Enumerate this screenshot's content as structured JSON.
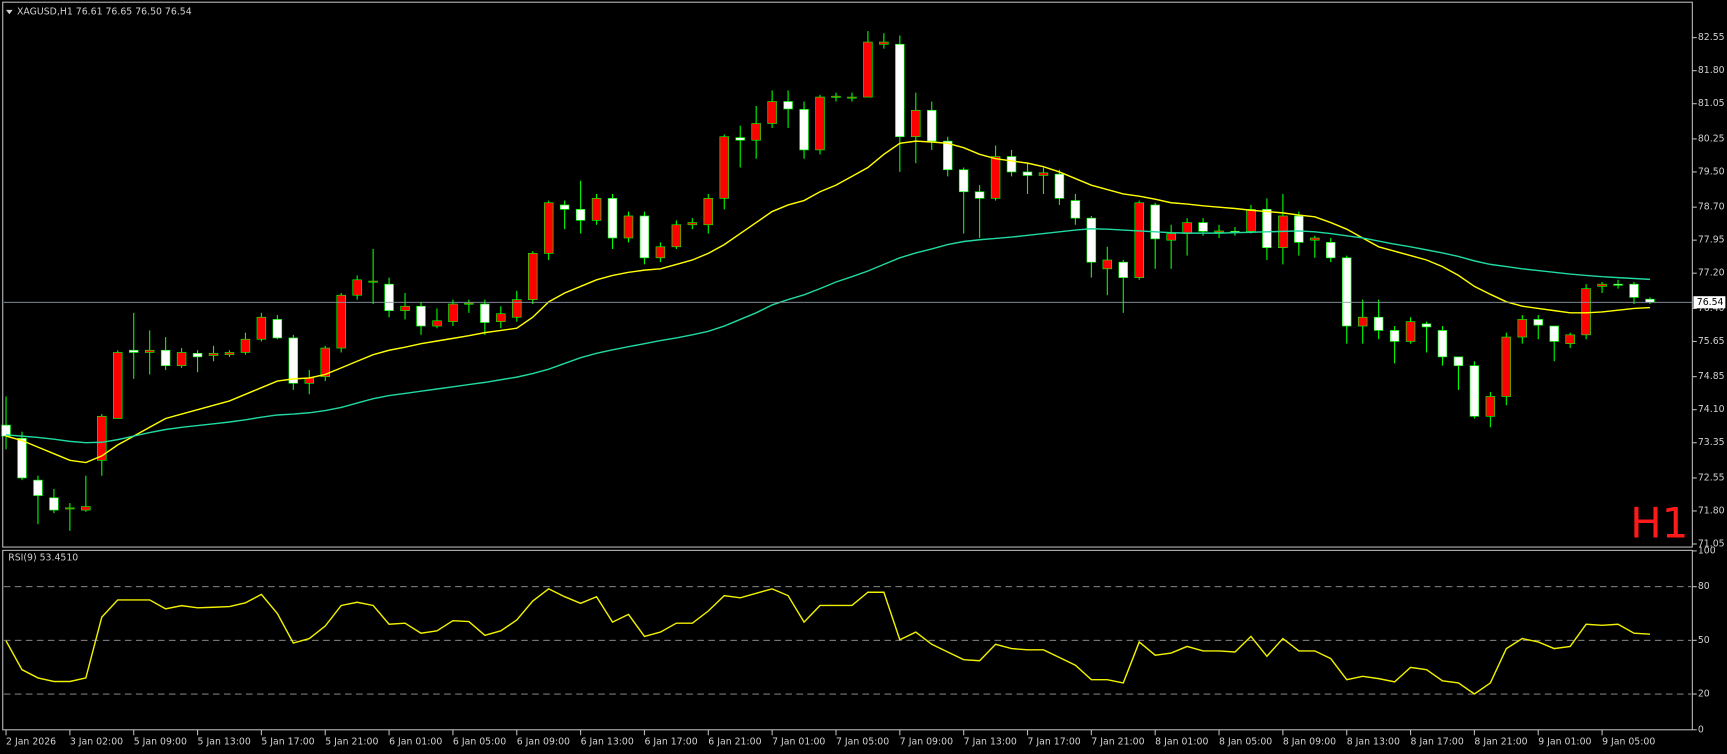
{
  "chart_data": [
    {
      "type": "candlestick",
      "title": "XAGUSD,H1  76.61 76.65 76.50 76.54",
      "annotation": "H1",
      "categories": [
        "2 Jan 2026",
        null,
        null,
        null,
        "3 Jan 02:00",
        null,
        null,
        null,
        "5 Jan 09:00",
        null,
        null,
        null,
        "5 Jan 13:00",
        null,
        null,
        null,
        "5 Jan 17:00",
        null,
        null,
        null,
        "5 Jan 21:00",
        null,
        null,
        null,
        "6 Jan 01:00",
        null,
        null,
        null,
        "6 Jan 05:00",
        null,
        null,
        null,
        "6 Jan 09:00",
        null,
        null,
        null,
        "6 Jan 13:00",
        null,
        null,
        null,
        "6 Jan 17:00",
        null,
        null,
        null,
        "6 Jan 21:00",
        null,
        null,
        null,
        "7 Jan 01:00",
        null,
        null,
        null,
        "7 Jan 05:00",
        null,
        null,
        null,
        "7 Jan 09:00",
        null,
        null,
        null,
        "7 Jan 13:00",
        null,
        null,
        null,
        "7 Jan 17:00",
        null,
        null,
        null,
        "7 Jan 21:00",
        null,
        null,
        null,
        "8 Jan 01:00",
        null,
        null,
        null,
        "8 Jan 05:00",
        null,
        null,
        null,
        "8 Jan 09:00",
        null,
        null,
        null,
        "8 Jan 13:00",
        null,
        null,
        null,
        "8 Jan 17:00",
        null,
        null,
        null,
        "8 Jan 21:00",
        null,
        null,
        null,
        "9 Jan 01:00",
        null,
        null,
        null,
        "9 Jan 05:00",
        null,
        null,
        null
      ],
      "ohlc": {
        "open": [
          73.75,
          73.45,
          72.5,
          72.1,
          71.85,
          71.82,
          72.95,
          73.9,
          75.45,
          75.4,
          75.45,
          75.1,
          75.38,
          75.33,
          75.35,
          75.4,
          75.7,
          76.15,
          75.73,
          74.7,
          74.85,
          75.5,
          76.7,
          77.0,
          76.95,
          76.35,
          76.45,
          76.0,
          76.1,
          76.5,
          76.5,
          76.1,
          76.2,
          76.6,
          77.65,
          78.75,
          78.65,
          78.4,
          78.9,
          78.0,
          78.5,
          77.55,
          77.8,
          78.3,
          78.3,
          78.9,
          80.28,
          80.22,
          80.6,
          81.1,
          80.92,
          80.0,
          81.2,
          81.18,
          81.2,
          82.4,
          82.4,
          80.3,
          80.9,
          80.2,
          79.55,
          79.05,
          78.9,
          79.85,
          79.5,
          79.42,
          79.45,
          78.85,
          78.45,
          77.3,
          77.45,
          77.1,
          78.75,
          77.95,
          78.1,
          78.35,
          78.13,
          78.15,
          78.15,
          78.65,
          77.78,
          78.5,
          77.95,
          77.9,
          77.55,
          76.0,
          76.2,
          75.9,
          75.65,
          76.05,
          75.9,
          75.3,
          75.1,
          73.95,
          74.4,
          75.75,
          76.15,
          76.0,
          75.6,
          75.8,
          76.9,
          76.95,
          76.95,
          76.61
        ],
        "high": [
          74.4,
          73.6,
          72.6,
          72.3,
          71.98,
          72.6,
          74.0,
          75.45,
          76.3,
          75.9,
          75.75,
          75.5,
          75.45,
          75.55,
          75.45,
          75.85,
          76.3,
          76.25,
          75.8,
          75.0,
          75.55,
          76.75,
          77.15,
          77.75,
          77.1,
          76.75,
          76.55,
          76.4,
          76.6,
          76.6,
          76.6,
          76.45,
          76.8,
          77.7,
          78.85,
          78.85,
          79.3,
          79.0,
          79.0,
          78.6,
          78.6,
          77.9,
          78.4,
          78.45,
          79.0,
          80.35,
          80.55,
          81.0,
          81.35,
          81.35,
          81.1,
          81.25,
          81.3,
          81.3,
          82.7,
          82.65,
          82.6,
          81.3,
          81.1,
          80.3,
          79.6,
          79.2,
          80.1,
          80.0,
          79.7,
          79.6,
          79.55,
          79.0,
          78.5,
          77.8,
          77.5,
          78.85,
          78.8,
          78.3,
          78.45,
          78.45,
          78.3,
          78.25,
          78.75,
          78.9,
          79.0,
          78.6,
          78.05,
          78.0,
          77.6,
          76.6,
          76.6,
          76.0,
          76.2,
          76.1,
          76.0,
          75.3,
          75.2,
          74.5,
          75.85,
          76.25,
          76.25,
          76.0,
          75.85,
          76.95,
          77.0,
          77.05,
          77.0,
          76.65
        ],
        "low": [
          73.2,
          72.5,
          71.5,
          71.75,
          71.35,
          71.78,
          72.6,
          73.9,
          74.8,
          74.9,
          75.0,
          75.05,
          74.95,
          75.2,
          75.3,
          75.35,
          75.65,
          75.7,
          74.55,
          74.45,
          74.75,
          75.4,
          76.6,
          76.5,
          76.2,
          76.15,
          75.8,
          75.95,
          76.0,
          76.3,
          75.8,
          75.95,
          76.1,
          76.5,
          77.5,
          78.2,
          78.1,
          78.3,
          77.75,
          77.9,
          77.4,
          77.45,
          77.75,
          78.2,
          78.1,
          78.65,
          79.6,
          79.8,
          80.5,
          80.5,
          79.8,
          79.9,
          81.1,
          81.1,
          81.2,
          82.3,
          79.5,
          79.7,
          80.0,
          79.4,
          78.1,
          78.0,
          78.85,
          79.4,
          79.0,
          79.0,
          78.75,
          78.3,
          77.1,
          76.7,
          76.3,
          77.05,
          77.3,
          77.3,
          77.6,
          78.05,
          78.0,
          78.05,
          78.1,
          77.5,
          77.4,
          77.6,
          77.55,
          77.45,
          75.6,
          75.6,
          75.7,
          75.15,
          75.6,
          75.4,
          75.1,
          74.55,
          73.9,
          73.7,
          74.2,
          75.6,
          75.7,
          75.2,
          75.5,
          75.7,
          76.75,
          76.85,
          76.5,
          76.5
        ],
        "close": [
          73.5,
          72.55,
          72.15,
          71.82,
          71.87,
          71.9,
          73.95,
          75.4,
          75.4,
          75.45,
          75.1,
          75.4,
          75.3,
          75.38,
          75.4,
          75.7,
          76.2,
          75.73,
          74.7,
          74.82,
          75.5,
          76.7,
          77.05,
          77.02,
          76.35,
          76.45,
          76.0,
          76.12,
          76.5,
          76.52,
          76.08,
          76.28,
          76.6,
          77.65,
          78.8,
          78.65,
          78.4,
          78.9,
          78.0,
          78.5,
          77.55,
          77.8,
          78.3,
          78.35,
          78.9,
          80.3,
          80.22,
          80.6,
          81.1,
          80.93,
          80.0,
          81.2,
          81.22,
          81.2,
          82.45,
          82.45,
          80.3,
          80.9,
          80.2,
          79.55,
          79.05,
          78.9,
          79.85,
          79.5,
          79.42,
          79.48,
          78.9,
          78.45,
          77.45,
          77.5,
          77.1,
          78.8,
          77.98,
          78.1,
          78.35,
          78.15,
          78.16,
          78.14,
          78.65,
          77.78,
          78.5,
          77.9,
          78.0,
          77.55,
          76.0,
          76.2,
          75.9,
          75.65,
          76.1,
          75.98,
          75.3,
          75.1,
          73.95,
          74.4,
          75.75,
          76.15,
          76.02,
          75.65,
          75.8,
          76.85,
          76.95,
          76.93,
          76.65,
          76.54
        ]
      },
      "up_color": "#ff0000",
      "down_color": "#ffffff",
      "wick_color": "#00ff00",
      "series": [
        {
          "color": "#ffff00",
          "values": [
            73.5,
            73.4,
            73.25,
            73.1,
            72.95,
            72.9,
            73.05,
            73.3,
            73.5,
            73.7,
            73.9,
            74.0,
            74.1,
            74.2,
            74.3,
            74.45,
            74.6,
            74.75,
            74.8,
            74.82,
            74.9,
            75.05,
            75.2,
            75.35,
            75.45,
            75.52,
            75.6,
            75.66,
            75.72,
            75.78,
            75.85,
            75.9,
            75.95,
            76.2,
            76.55,
            76.75,
            76.9,
            77.05,
            77.15,
            77.22,
            77.27,
            77.3,
            77.4,
            77.5,
            77.65,
            77.85,
            78.1,
            78.35,
            78.6,
            78.75,
            78.85,
            79.05,
            79.2,
            79.4,
            79.6,
            79.9,
            80.15,
            80.2,
            80.18,
            80.15,
            80.05,
            79.9,
            79.8,
            79.75,
            79.7,
            79.62,
            79.5,
            79.35,
            79.2,
            79.1,
            79.0,
            78.95,
            78.88,
            78.8,
            78.77,
            78.73,
            78.7,
            78.67,
            78.63,
            78.6,
            78.57,
            78.52,
            78.48,
            78.35,
            78.2,
            78.0,
            77.8,
            77.7,
            77.6,
            77.5,
            77.35,
            77.15,
            76.9,
            76.72,
            76.55,
            76.45,
            76.4,
            76.35,
            76.3,
            76.3,
            76.32,
            76.36,
            76.4,
            76.42
          ]
        },
        {
          "color": "#20d8a0",
          "values": [
            73.53,
            73.5,
            73.47,
            73.43,
            73.38,
            73.35,
            73.36,
            73.42,
            73.5,
            73.58,
            73.65,
            73.7,
            73.74,
            73.78,
            73.82,
            73.87,
            73.93,
            73.98,
            74.0,
            74.03,
            74.08,
            74.15,
            74.25,
            74.35,
            74.42,
            74.47,
            74.52,
            74.57,
            74.62,
            74.67,
            74.72,
            74.78,
            74.84,
            74.92,
            75.02,
            75.15,
            75.28,
            75.38,
            75.46,
            75.53,
            75.6,
            75.67,
            75.73,
            75.8,
            75.88,
            76.0,
            76.15,
            76.3,
            76.48,
            76.6,
            76.71,
            76.85,
            77.0,
            77.12,
            77.25,
            77.4,
            77.55,
            77.66,
            77.75,
            77.85,
            77.92,
            77.96,
            77.99,
            78.02,
            78.06,
            78.1,
            78.14,
            78.18,
            78.21,
            78.2,
            78.18,
            78.16,
            78.14,
            78.12,
            78.11,
            78.11,
            78.11,
            78.12,
            78.13,
            78.14,
            78.15,
            78.16,
            78.14,
            78.1,
            78.05,
            78.0,
            77.93,
            77.86,
            77.8,
            77.73,
            77.66,
            77.58,
            77.48,
            77.4,
            77.35,
            77.3,
            77.26,
            77.22,
            77.18,
            77.15,
            77.12,
            77.1,
            77.08,
            77.06
          ]
        }
      ],
      "ylim": [
        70.98,
        83.33
      ],
      "yticks": [
        {
          "value": 82.55,
          "label": "82.55"
        },
        {
          "value": 81.8,
          "label": "81.80"
        },
        {
          "value": 81.05,
          "label": "81.05"
        },
        {
          "value": 80.25,
          "label": "80.25"
        },
        {
          "value": 79.5,
          "label": "79.50"
        },
        {
          "value": 78.7,
          "label": "78.70"
        },
        {
          "value": 77.95,
          "label": "77.95"
        },
        {
          "value": 77.2,
          "label": "77.20"
        },
        {
          "value": 76.4,
          "label": "76.40"
        },
        {
          "value": 75.65,
          "label": "75.65"
        },
        {
          "value": 74.85,
          "label": "74.85"
        },
        {
          "value": 74.1,
          "label": "74.10"
        },
        {
          "value": 73.35,
          "label": "73.35"
        },
        {
          "value": 72.55,
          "label": "72.55"
        },
        {
          "value": 71.8,
          "label": "71.80"
        },
        {
          "value": 71.05,
          "label": "71.05"
        }
      ]
    },
    {
      "type": "line",
      "title": "RSI(9) 53.4510",
      "series": [
        {
          "color": "#f0f000",
          "values": [
            49.7,
            33.6,
            29,
            27,
            27,
            29,
            63,
            72.6,
            72.6,
            72.6,
            67.6,
            69.4,
            68.2,
            68.5,
            68.9,
            71,
            75.7,
            65,
            48.5,
            51,
            58,
            69.5,
            71.3,
            69.5,
            59,
            59.6,
            54,
            55.3,
            61,
            60.5,
            52.8,
            55.3,
            61.4,
            72,
            78.8,
            74.4,
            70.7,
            74.4,
            60.2,
            64.5,
            52.2,
            54.6,
            59.6,
            59.6,
            66.4,
            75,
            73.8,
            76.3,
            78.8,
            75,
            60.2,
            69.5,
            69.5,
            69.5,
            76.9,
            76.9,
            50.3,
            54.6,
            47.8,
            43.5,
            39.2,
            38.6,
            47.8,
            45.4,
            44.7,
            44.7,
            40.4,
            36.1,
            28,
            28,
            26.2,
            49.1,
            41.7,
            42.9,
            46.6,
            44.1,
            44.1,
            43.5,
            52.2,
            41.1,
            51,
            44.1,
            44.1,
            39.8,
            28,
            29.9,
            28.6,
            26.8,
            34.9,
            33.6,
            27.4,
            26.2,
            20,
            26.2,
            45.4,
            51,
            49.1,
            45.4,
            46.6,
            59,
            58.4,
            59,
            54,
            53.451
          ]
        }
      ],
      "ylim": [
        0,
        100
      ],
      "yticks": [
        100,
        80,
        50,
        20,
        0
      ]
    }
  ]
}
